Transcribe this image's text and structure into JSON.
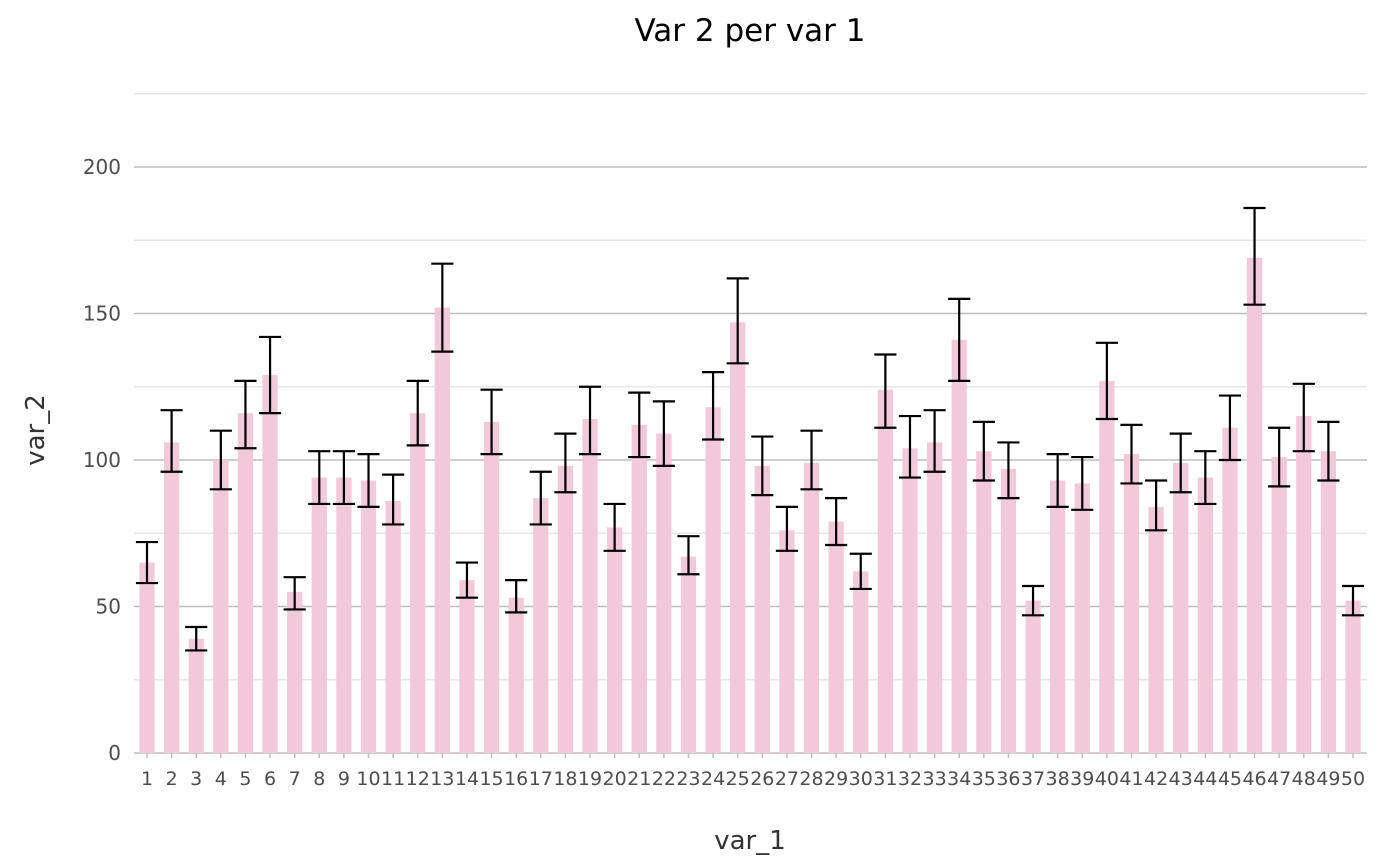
{
  "chart_data": {
    "type": "bar",
    "title": "Var 2 per var 1",
    "xlabel": "var_1",
    "ylabel": "var_2",
    "ylim": [
      0,
      225
    ],
    "yticks": [
      0,
      50,
      100,
      150,
      200
    ],
    "grid": true,
    "categories": [
      "1",
      "2",
      "3",
      "4",
      "5",
      "6",
      "7",
      "8",
      "9",
      "10",
      "11",
      "12",
      "13",
      "14",
      "15",
      "16",
      "17",
      "18",
      "19",
      "20",
      "21",
      "22",
      "23",
      "24",
      "25",
      "26",
      "27",
      "28",
      "29",
      "30",
      "31",
      "32",
      "33",
      "34",
      "35",
      "36",
      "37",
      "38",
      "39",
      "40",
      "41",
      "42",
      "43",
      "44",
      "45",
      "46",
      "47",
      "48",
      "49",
      "50"
    ],
    "values": [
      65,
      106,
      39,
      100,
      116,
      129,
      55,
      94,
      94,
      93,
      86,
      116,
      152,
      59,
      113,
      53,
      87,
      98,
      114,
      77,
      112,
      109,
      67,
      118,
      147,
      98,
      76,
      99,
      79,
      62,
      124,
      104,
      106,
      141,
      103,
      97,
      52,
      93,
      92,
      127,
      102,
      84,
      99,
      94,
      111,
      169,
      101,
      115,
      103,
      52
    ],
    "error_low": [
      58,
      96,
      35,
      90,
      104,
      116,
      49,
      85,
      85,
      84,
      78,
      105,
      137,
      53,
      102,
      48,
      78,
      89,
      102,
      69,
      101,
      98,
      61,
      107,
      133,
      88,
      69,
      90,
      71,
      56,
      111,
      94,
      96,
      127,
      93,
      87,
      47,
      84,
      83,
      114,
      92,
      76,
      89,
      85,
      100,
      153,
      91,
      103,
      93,
      47
    ],
    "error_high": [
      72,
      117,
      43,
      110,
      127,
      142,
      60,
      103,
      103,
      102,
      95,
      127,
      167,
      65,
      124,
      59,
      96,
      109,
      125,
      85,
      123,
      120,
      74,
      130,
      162,
      108,
      84,
      110,
      87,
      68,
      136,
      115,
      117,
      155,
      113,
      106,
      57,
      102,
      101,
      140,
      112,
      93,
      109,
      103,
      122,
      186,
      111,
      126,
      113,
      57
    ],
    "bar_color": "#f2c9d9",
    "error_color": "#000000"
  }
}
